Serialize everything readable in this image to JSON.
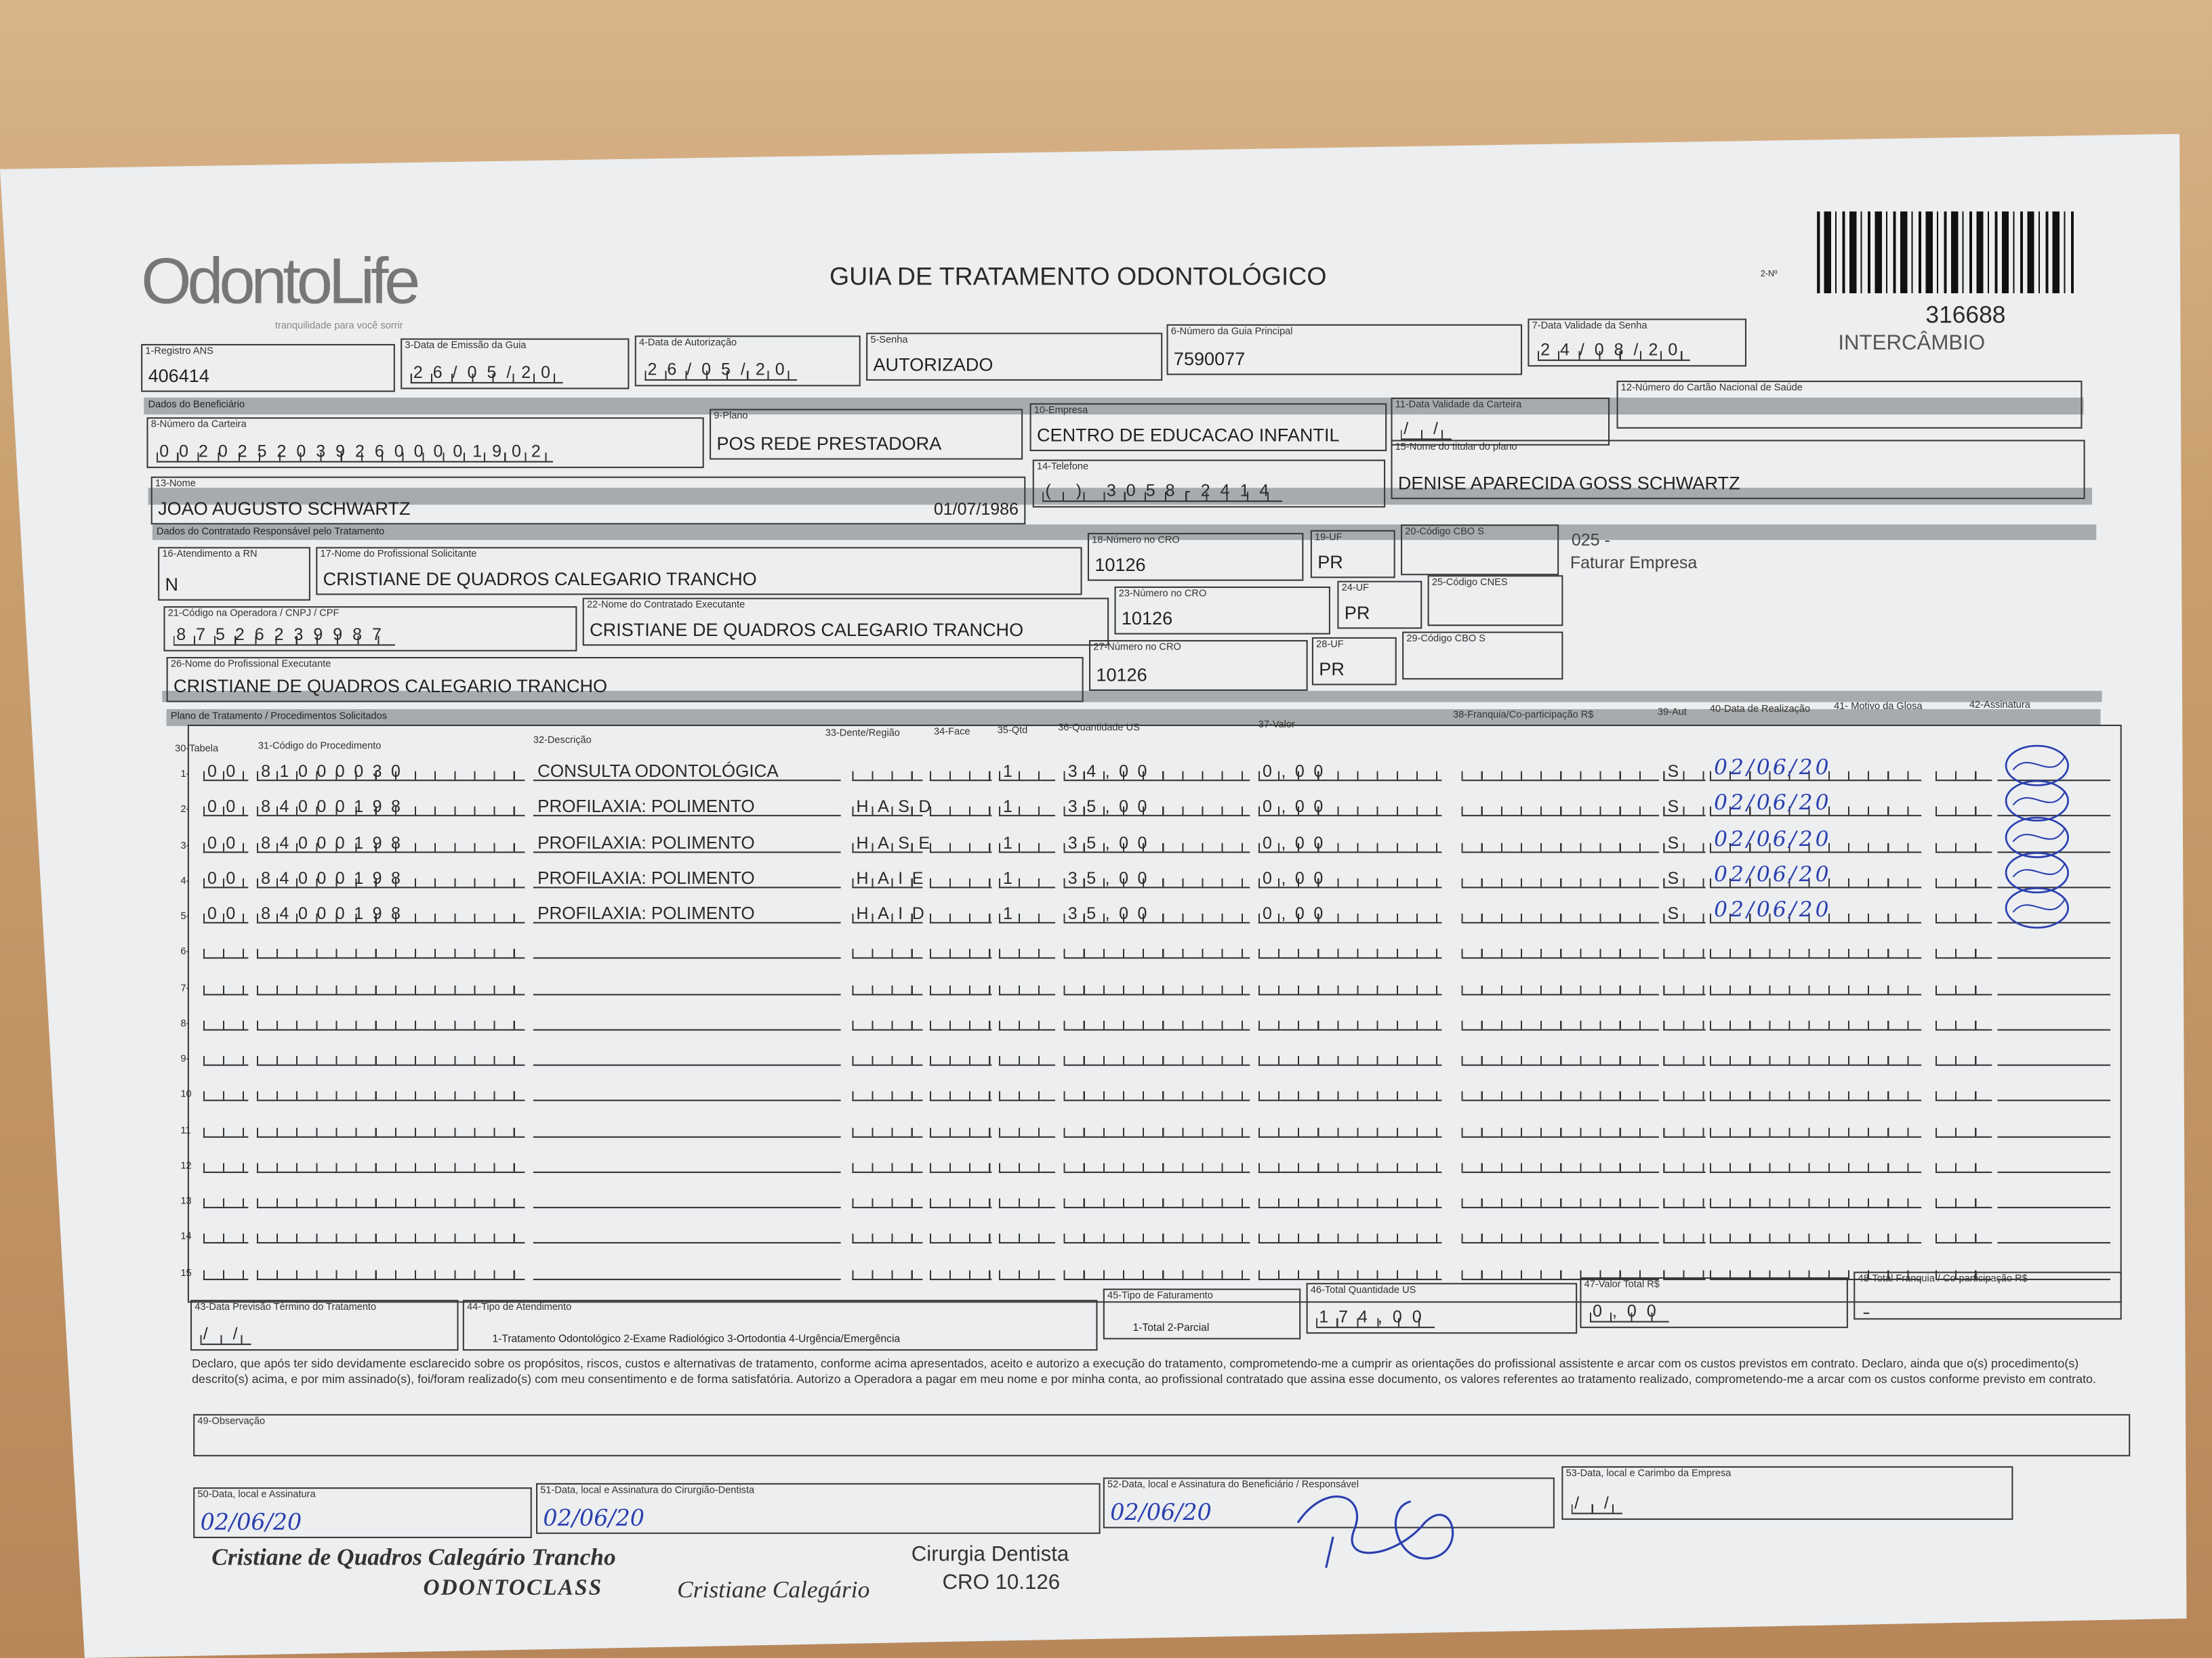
{
  "header": {
    "logo": "OdontoLife",
    "tagline": "tranquilidade para você sorrir",
    "title": "GUIA DE TRATAMENTO ODONTOLÓGICO",
    "numero_label": "2-Nº",
    "numero": "316688",
    "tipo": "INTERCÂMBIO"
  },
  "fields": {
    "f1": {
      "label": "1-Registro ANS",
      "value": "406414"
    },
    "f3": {
      "label": "3-Data de Emissão da Guia",
      "value": "26/05/20"
    },
    "f4": {
      "label": "4-Data de Autorização",
      "value": "26/05/20"
    },
    "f5": {
      "label": "5-Senha",
      "value": "AUTORIZADO"
    },
    "f6": {
      "label": "6-Número da Guia Principal",
      "value": "7590077"
    },
    "f7": {
      "label": "7-Data Validade da Senha",
      "value": "24/08/20"
    },
    "f8": {
      "label": "8-Número da Carteira",
      "value": "00202520392600001902"
    },
    "f9": {
      "label": "9-Plano",
      "value": "POS REDE PRESTADORA"
    },
    "f10": {
      "label": "10-Empresa",
      "value": "CENTRO DE EDUCACAO INFANTIL"
    },
    "f11": {
      "label": "11-Data Validade da Carteira",
      "value": "  /  /  "
    },
    "f12": {
      "label": "12-Número do Cartão Nacional de Saúde",
      "value": ""
    },
    "f13": {
      "label": "13-Nome",
      "value": "JOAO AUGUSTO SCHWARTZ",
      "birth": "01/07/1986"
    },
    "f14": {
      "label": "14-Telefone",
      "value": "(  ) 3058-2414"
    },
    "f15": {
      "label": "15-Nome do titular do plano",
      "value": "DENISE APARECIDA GOSS SCHWARTZ"
    },
    "f16": {
      "label": "16-Atendimento a RN",
      "value": "N"
    },
    "f17": {
      "label": "17-Nome do Profissional Solicitante",
      "value": "CRISTIANE DE QUADROS CALEGARIO TRANCHO"
    },
    "f18": {
      "label": "18-Número no CRO",
      "value": "10126"
    },
    "f19": {
      "label": "19-UF",
      "value": "PR"
    },
    "f20": {
      "label": "20-Código CBO S",
      "value": ""
    },
    "f21": {
      "label": "21-Código na Operadora / CNPJ / CPF",
      "value": "87526239987"
    },
    "f22": {
      "label": "22-Nome do Contratado Executante",
      "value": "CRISTIANE DE QUADROS CALEGARIO TRANCHO"
    },
    "f23": {
      "label": "23-Número no CRO",
      "value": "10126"
    },
    "f24": {
      "label": "24-UF",
      "value": "PR"
    },
    "f25": {
      "label": "25-Código CNES",
      "value": ""
    },
    "f26": {
      "label": "26-Nome do Profissional Executante",
      "value": "CRISTIANE DE QUADROS CALEGARIO TRANCHO"
    },
    "f27": {
      "label": "27-Número no CRO",
      "value": "10126"
    },
    "f28": {
      "label": "28-UF",
      "value": "PR"
    },
    "f29": {
      "label": "29-Código CBO S",
      "value": ""
    },
    "f43": {
      "label": "43-Data Previsão Término do Tratamento",
      "value": "  /  /  "
    },
    "f44": {
      "label": "44-Tipo de Atendimento",
      "value": "1-Tratamento Odontológico  2-Exame Radiológico  3-Ortodontia  4-Urgência/Emergência"
    },
    "f45": {
      "label": "45-Tipo de Faturamento",
      "value": "1-Total  2-Parcial"
    },
    "f46": {
      "label": "46-Total Quantidade US",
      "value": "174,00"
    },
    "f47": {
      "label": "47-Valor Total R$",
      "value": "0,00"
    },
    "f48": {
      "label": "48-Total Franquia / Co-participação R$",
      "value": ""
    },
    "f49": {
      "label": "49-Observação",
      "value": ""
    },
    "f50": {
      "label": "50-Data, local e Assinatura",
      "value": "02/06/20"
    },
    "f51": {
      "label": "51-Data, local e Assinatura do Cirurgião-Dentista",
      "value": "02/06/20"
    },
    "f52": {
      "label": "52-Data, local e Assinatura do Beneficiário / Responsável",
      "value": "02/06/20"
    },
    "f53": {
      "label": "53-Data, local e Carimbo da Empresa",
      "value": "  /  /  "
    }
  },
  "sections": {
    "beneficiario": "Dados do Beneficiário",
    "contratado": "Dados do Contratado Responsável pelo Tratamento",
    "plano": "Plano de Tratamento / Procedimentos Solicitados"
  },
  "faturamento_note": {
    "code": "025 -",
    "text": "Faturar Empresa"
  },
  "procedures": {
    "headers": [
      "30-Tabela",
      "31-Código do Procedimento",
      "32-Descrição",
      "33-Dente/Região",
      "34-Face",
      "35-Qtd",
      "36-Quantidade US",
      "37-Valor",
      "38-Franquia/Co-participação R$",
      "39-Aut",
      "40-Data de Realização",
      "41- Motivo da Glosa",
      "42-Assinatura"
    ],
    "rows": [
      {
        "num": "1-",
        "tabela": "00",
        "codigo": "81000030",
        "desc": "CONSULTA ODONTOLÓGICA",
        "dente": "",
        "qtd": "1",
        "us": "34,00",
        "valor": "0,00",
        "aut": "S",
        "data": "02/06/20"
      },
      {
        "num": "2-",
        "tabela": "00",
        "codigo": "84000198",
        "desc": "PROFILAXIA: POLIMENTO",
        "dente": "HASD",
        "qtd": "1",
        "us": "35,00",
        "valor": "0,00",
        "aut": "S",
        "data": "02/06/20"
      },
      {
        "num": "3-",
        "tabela": "00",
        "codigo": "84000198",
        "desc": "PROFILAXIA: POLIMENTO",
        "dente": "HASE",
        "qtd": "1",
        "us": "35,00",
        "valor": "0,00",
        "aut": "S",
        "data": "02/06/20"
      },
      {
        "num": "4-",
        "tabela": "00",
        "codigo": "84000198",
        "desc": "PROFILAXIA: POLIMENTO",
        "dente": "HAIE",
        "qtd": "1",
        "us": "35,00",
        "valor": "0,00",
        "aut": "S",
        "data": "02/06/20"
      },
      {
        "num": "5-",
        "tabela": "00",
        "codigo": "84000198",
        "desc": "PROFILAXIA: POLIMENTO",
        "dente": "HAID",
        "qtd": "1",
        "us": "35,00",
        "valor": "0,00",
        "aut": "S",
        "data": "02/06/20"
      },
      {
        "num": "6-"
      },
      {
        "num": "7-"
      },
      {
        "num": "8-"
      },
      {
        "num": "9-"
      },
      {
        "num": "10"
      },
      {
        "num": "11"
      },
      {
        "num": "12"
      },
      {
        "num": "13"
      },
      {
        "num": "14"
      },
      {
        "num": "15"
      }
    ]
  },
  "declaration": "Declaro, que após ter sido devidamente esclarecido sobre os propósitos, riscos, custos e alternativas de tratamento, conforme acima apresentados, aceito e autorizo a execução do tratamento, comprometendo-me a cumprir as orientações do profissional assistente e arcar com os custos previstos em contrato. Declaro, ainda que o(s) procedimento(s) descrito(s) acima, e por mim assinado(s), foi/foram realizado(s) com meu consentimento e de forma satisfatória. Autorizo a Operadora a pagar em meu nome e por minha conta, ao profissional contratado que assina esse documento, os valores referentes ao tratamento realizado, comprometendo-me a arcar com os custos conforme previsto em contrato.",
  "stamp": {
    "name": "Cristiane de Quadros Calegário Trancho",
    "clinic": "ODONTOCLASS",
    "signature": "Cristiane Calegário",
    "role": "Cirurgia Dentista",
    "cro": "CRO 10.126"
  },
  "colors": {
    "ink": "#2a3fae",
    "paper": "#eceef0",
    "band": "#a8abad",
    "wood": "#c99a6a"
  }
}
